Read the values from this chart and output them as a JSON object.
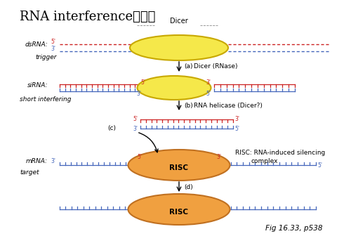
{
  "title": "RNA interference之機制",
  "title_fontsize": 13,
  "bg_color": "#ffffff",
  "fig_label": "Fig 16.33, p538",
  "annotations": {
    "a": "(a)↓Dicer (RNase)",
    "b": "(b)↓RNA helicase (Dicer?)",
    "c": "(c)",
    "d": "(d)"
  },
  "colors": {
    "red_strand": "#cc2222",
    "blue_strand": "#4466bb",
    "yellow_ellipse_face": "#f5e84a",
    "yellow_ellipse_edge": "#c8a800",
    "orange_ellipse_face": "#f0a040",
    "orange_ellipse_edge": "#c07020",
    "text_color": "#000000",
    "arrow_color": "#000000",
    "gray": "#888888"
  }
}
